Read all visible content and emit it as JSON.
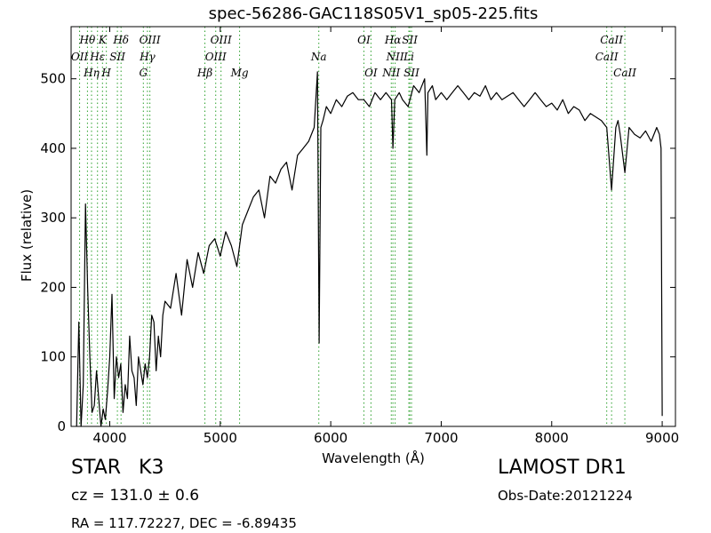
{
  "title": "spec-56286-GAC118S05V1_sp05-225.fits",
  "classification": {
    "class": "STAR",
    "subclass": "K3"
  },
  "redshift_text": "cz = 131.0 ± 0.6",
  "coords_text": "RA = 117.72227, DEC = -6.89435",
  "survey": "LAMOST DR1",
  "obs_date": "Obs-Date:20121224",
  "colors": {
    "spectrum": "#000000",
    "line_markers": "#2ca02c",
    "frame": "#000000"
  },
  "chart_data": {
    "type": "line",
    "xlabel": "Wavelength (Å)",
    "ylabel": "Flux (relative)",
    "xlim": [
      3650,
      9120
    ],
    "ylim": [
      0,
      575
    ],
    "xticks": [
      4000,
      5000,
      6000,
      7000,
      8000,
      9000
    ],
    "yticks": [
      0,
      100,
      200,
      300,
      400,
      500
    ],
    "grid": false,
    "series": [
      {
        "x": [
          3700,
          3720,
          3740,
          3760,
          3780,
          3800,
          3820,
          3840,
          3860,
          3880,
          3900,
          3920,
          3940,
          3960,
          3980,
          4000,
          4020,
          4040,
          4060,
          4080,
          4100,
          4120,
          4140,
          4160,
          4180,
          4200,
          4220,
          4240,
          4260,
          4280,
          4300,
          4320,
          4340,
          4360,
          4380,
          4400,
          4420,
          4440,
          4460,
          4480,
          4500,
          4550,
          4600,
          4650,
          4700,
          4750,
          4800,
          4850,
          4900,
          4950,
          5000,
          5050,
          5100,
          5150,
          5200,
          5250,
          5300,
          5350,
          5400,
          5450,
          5500,
          5550,
          5600,
          5650,
          5700,
          5750,
          5800,
          5850,
          5880,
          5895,
          5910,
          5930,
          5960,
          6000,
          6050,
          6100,
          6150,
          6200,
          6250,
          6300,
          6350,
          6400,
          6450,
          6500,
          6550,
          6563,
          6580,
          6620,
          6650,
          6700,
          6750,
          6800,
          6850,
          6870,
          6880,
          6920,
          6950,
          7000,
          7050,
          7100,
          7150,
          7200,
          7250,
          7300,
          7350,
          7400,
          7450,
          7500,
          7550,
          7600,
          7650,
          7700,
          7750,
          7800,
          7850,
          7900,
          7950,
          8000,
          8050,
          8100,
          8150,
          8200,
          8250,
          8300,
          8350,
          8400,
          8450,
          8498,
          8542,
          8580,
          8600,
          8620,
          8662,
          8700,
          8750,
          8800,
          8850,
          8900,
          8950,
          8975,
          8990,
          9000
        ],
        "y": [
          0,
          150,
          0,
          60,
          320,
          200,
          100,
          20,
          30,
          80,
          40,
          0,
          25,
          10,
          50,
          100,
          190,
          40,
          100,
          70,
          90,
          20,
          60,
          40,
          130,
          80,
          70,
          30,
          100,
          80,
          60,
          90,
          70,
          100,
          160,
          150,
          80,
          130,
          100,
          160,
          180,
          170,
          220,
          160,
          240,
          200,
          250,
          220,
          260,
          270,
          245,
          280,
          260,
          230,
          290,
          310,
          330,
          340,
          300,
          360,
          350,
          370,
          380,
          340,
          390,
          400,
          410,
          430,
          510,
          120,
          430,
          440,
          460,
          450,
          470,
          460,
          475,
          480,
          470,
          470,
          460,
          480,
          470,
          480,
          470,
          400,
          470,
          480,
          470,
          460,
          490,
          480,
          500,
          390,
          480,
          490,
          470,
          480,
          470,
          480,
          490,
          480,
          470,
          480,
          475,
          490,
          470,
          480,
          470,
          475,
          480,
          470,
          460,
          470,
          480,
          470,
          460,
          465,
          455,
          470,
          450,
          460,
          455,
          440,
          450,
          445,
          440,
          430,
          340,
          430,
          440,
          420,
          365,
          430,
          420,
          415,
          425,
          410,
          430,
          420,
          400,
          15
        ]
      }
    ],
    "line_markers": [
      {
        "label": "Hθ",
        "x": 3798,
        "row": 1
      },
      {
        "label": "OII",
        "x": 3727,
        "row": 2
      },
      {
        "label": "Hη",
        "x": 3835,
        "row": 3
      },
      {
        "label": "Hε",
        "x": 3889,
        "row": 2
      },
      {
        "label": "K",
        "x": 3934,
        "row": 1
      },
      {
        "label": "SII",
        "x": 4069,
        "row": 2
      },
      {
        "label": "H",
        "x": 3969,
        "row": 3
      },
      {
        "label": "Hδ",
        "x": 4102,
        "row": 1
      },
      {
        "label": "OIII",
        "x": 4363,
        "row": 1
      },
      {
        "label": "Hγ",
        "x": 4341,
        "row": 2
      },
      {
        "label": "G",
        "x": 4304,
        "row": 3
      },
      {
        "label": "OIII",
        "x": 5007,
        "row": 1
      },
      {
        "label": "OIII",
        "x": 4959,
        "row": 2
      },
      {
        "label": "Hβ",
        "x": 4861,
        "row": 3
      },
      {
        "label": "Mg",
        "x": 5175,
        "row": 3
      },
      {
        "label": "Na",
        "x": 5892,
        "row": 2
      },
      {
        "label": "OI",
        "x": 6300,
        "row": 1
      },
      {
        "label": "OI",
        "x": 6364,
        "row": 3
      },
      {
        "label": "Hα",
        "x": 6563,
        "row": 1
      },
      {
        "label": "SII",
        "x": 6716,
        "row": 1
      },
      {
        "label": "NII",
        "x": 6583,
        "row": 2
      },
      {
        "label": "NII",
        "x": 6548,
        "row": 3
      },
      {
        "label": "Li",
        "x": 6707,
        "row": 2
      },
      {
        "label": "SII",
        "x": 6731,
        "row": 3
      },
      {
        "label": "CaII",
        "x": 8542,
        "row": 1
      },
      {
        "label": "CaII",
        "x": 8498,
        "row": 2
      },
      {
        "label": "CaII",
        "x": 8662,
        "row": 3
      }
    ]
  }
}
